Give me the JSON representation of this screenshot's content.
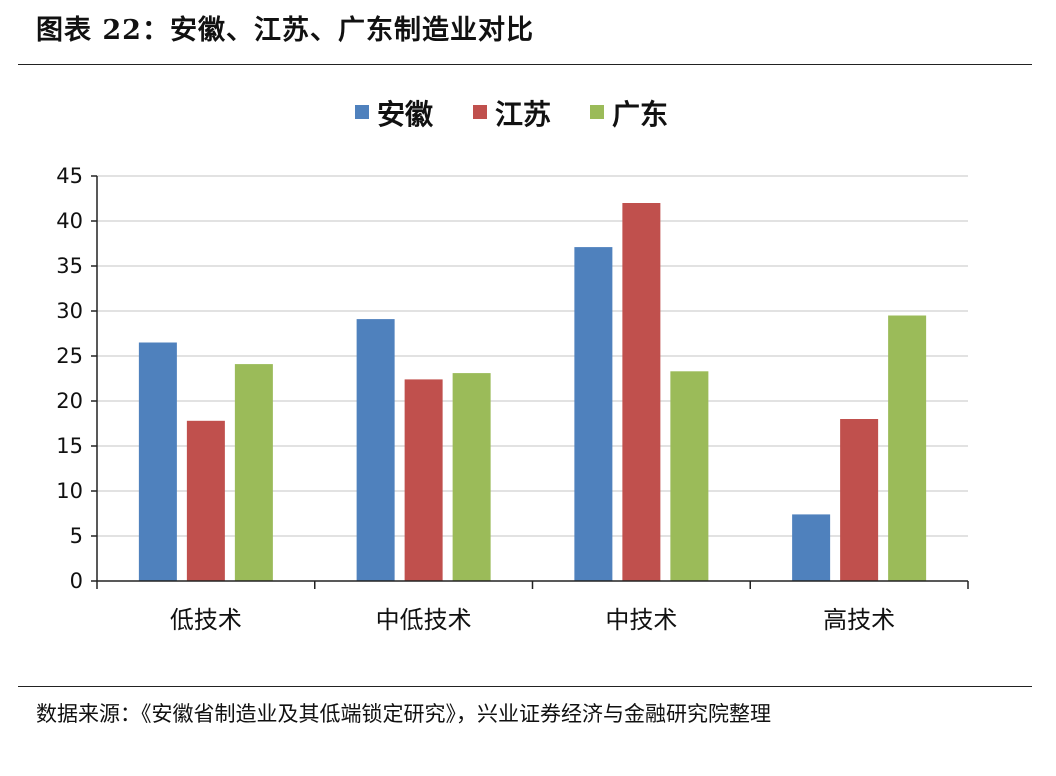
{
  "figure": {
    "title": "图表 22：安徽、江苏、广东制造业对比",
    "source": "数据来源：《安徽省制造业及其低端锁定研究》，兴业证券经济与金融研究院整理"
  },
  "chart_data": {
    "type": "bar",
    "title": "",
    "xlabel": "",
    "ylabel": "",
    "categories": [
      "低技术",
      "中低技术",
      "中技术",
      "高技术"
    ],
    "series": [
      {
        "name": "安徽",
        "color": "#4F81BD",
        "values": [
          26.5,
          29.1,
          37.1,
          7.4
        ]
      },
      {
        "name": "江苏",
        "color": "#C0504D",
        "values": [
          17.8,
          22.4,
          42.0,
          18.0
        ]
      },
      {
        "name": "广东",
        "color": "#9BBB59",
        "values": [
          24.1,
          23.1,
          23.3,
          29.5
        ]
      }
    ],
    "ylim": [
      0,
      45
    ],
    "yticks": [
      0,
      5,
      10,
      15,
      20,
      25,
      30,
      35,
      40,
      45
    ],
    "grid": true,
    "legend_position": "top-center"
  }
}
